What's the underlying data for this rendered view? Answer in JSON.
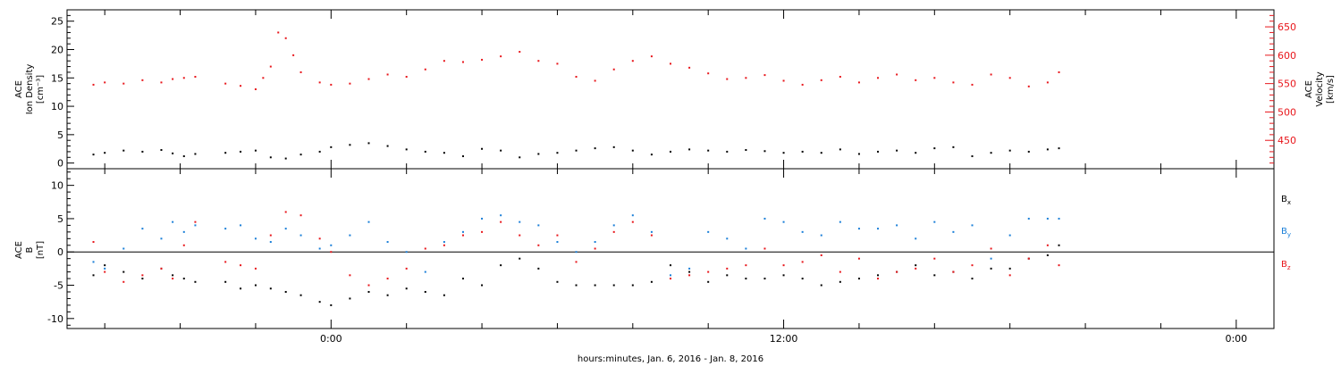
{
  "chart_data": [
    {
      "type": "scatter",
      "panel": "top",
      "ylabel_left": [
        "ACE",
        "Ion Density",
        "[cm⁻³]"
      ],
      "ylabel_right": [
        "ACE",
        "Velocity",
        "[km/s]"
      ],
      "ylim_left": [
        -1,
        27
      ],
      "ylim_right": [
        400,
        680
      ],
      "yticks_left": [
        "0",
        "5",
        "10",
        "15",
        "20",
        "25"
      ],
      "yticks_right": [
        "450",
        "500",
        "550",
        "600",
        "650"
      ],
      "series": [
        {
          "name": "",
          "axis": "left",
          "color": "#000000",
          "x_hours": [
            -6.3,
            -6.0,
            -5.5,
            -5.0,
            -4.5,
            -4.2,
            -3.9,
            -3.6,
            -2.8,
            -2.4,
            -2.0,
            -1.6,
            -1.2,
            -0.8,
            -0.3,
            0.0,
            0.5,
            1.0,
            1.5,
            2.0,
            2.5,
            3.0,
            3.5,
            4.0,
            4.5,
            5.0,
            5.5,
            6.0,
            6.5,
            7.0,
            7.5,
            8.0,
            8.5,
            9.0,
            9.5,
            10.0,
            10.5,
            11.0,
            11.5,
            12.0,
            12.5,
            13.0,
            13.5,
            14.0,
            14.5,
            15.0,
            15.5,
            16.0,
            16.5,
            17.0,
            17.5,
            18.0,
            18.5,
            19.0,
            19.3
          ],
          "values": [
            1.5,
            1.8,
            2.2,
            2.0,
            2.3,
            1.7,
            1.2,
            1.6,
            1.8,
            2.0,
            2.2,
            1.0,
            0.8,
            1.5,
            2.0,
            2.8,
            3.2,
            3.5,
            3.0,
            2.4,
            2.0,
            1.8,
            1.2,
            2.5,
            2.2,
            1.0,
            1.6,
            1.8,
            2.2,
            2.6,
            2.8,
            2.2,
            1.5,
            2.0,
            2.4,
            2.2,
            2.0,
            2.3,
            2.1,
            1.8,
            2.0,
            1.8,
            2.4,
            1.6,
            2.0,
            2.2,
            1.8,
            2.6,
            2.8,
            1.2,
            1.8,
            2.2,
            2.0,
            2.4,
            2.6
          ]
        },
        {
          "name": "",
          "axis": "right",
          "color": "#e8161b",
          "x_hours": [
            -6.3,
            -6.0,
            -5.5,
            -5.0,
            -4.5,
            -4.2,
            -3.9,
            -3.6,
            -2.8,
            -2.4,
            -2.0,
            -1.8,
            -1.6,
            -1.4,
            -1.2,
            -1.0,
            -0.8,
            -0.3,
            0.0,
            0.5,
            1.0,
            1.5,
            2.0,
            2.5,
            3.0,
            3.5,
            4.0,
            4.5,
            5.0,
            5.5,
            6.0,
            6.5,
            7.0,
            7.5,
            8.0,
            8.5,
            9.0,
            9.5,
            10.0,
            10.5,
            11.0,
            11.5,
            12.0,
            12.5,
            13.0,
            13.5,
            14.0,
            14.5,
            15.0,
            15.5,
            16.0,
            16.5,
            17.0,
            17.5,
            18.0,
            18.5,
            19.0,
            19.3
          ],
          "values": [
            548,
            552,
            550,
            556,
            552,
            558,
            560,
            562,
            550,
            546,
            540,
            560,
            580,
            640,
            630,
            600,
            570,
            552,
            548,
            550,
            558,
            566,
            562,
            575,
            590,
            588,
            592,
            598,
            606,
            590,
            585,
            562,
            555,
            575,
            590,
            598,
            585,
            578,
            568,
            558,
            560,
            565,
            555,
            548,
            556,
            562,
            552,
            560,
            566,
            556,
            560,
            552,
            548,
            566,
            560,
            545,
            552,
            570
          ]
        }
      ]
    },
    {
      "type": "scatter",
      "panel": "bottom",
      "ylabel_left": [
        "ACE",
        "B",
        "[nT]"
      ],
      "ylim": [
        -11.5,
        12.5
      ],
      "yticks": [
        "-10",
        "-5",
        "0",
        "5",
        "10"
      ],
      "zero_line": 0,
      "series": [
        {
          "name": "Bx",
          "color": "#000000",
          "x_hours": [
            -6.3,
            -6.0,
            -5.5,
            -5.0,
            -4.5,
            -4.2,
            -3.9,
            -3.6,
            -2.8,
            -2.4,
            -2.0,
            -1.6,
            -1.2,
            -0.8,
            -0.3,
            0.0,
            0.5,
            1.0,
            1.5,
            2.0,
            2.5,
            3.0,
            3.5,
            4.0,
            4.5,
            5.0,
            5.5,
            6.0,
            6.5,
            7.0,
            7.5,
            8.0,
            8.5,
            9.0,
            9.5,
            10.0,
            10.5,
            11.0,
            11.5,
            12.0,
            12.5,
            13.0,
            13.5,
            14.0,
            14.5,
            15.0,
            15.5,
            16.0,
            16.5,
            17.0,
            17.5,
            18.0,
            18.5,
            19.0,
            19.3
          ],
          "values": [
            -3.5,
            -2.0,
            -3.0,
            -4.0,
            -2.5,
            -3.5,
            -4.0,
            -4.5,
            -4.5,
            -5.5,
            -5.0,
            -5.5,
            -6.0,
            -6.5,
            -7.5,
            -8.0,
            -7.0,
            -6.0,
            -6.5,
            -5.5,
            -6.0,
            -6.5,
            -4.0,
            -5.0,
            -2.0,
            -1.0,
            -2.5,
            -4.5,
            -5.0,
            -5.0,
            -5.0,
            -5.0,
            -4.5,
            -2.0,
            -3.0,
            -4.5,
            -3.5,
            -4.0,
            -4.0,
            -3.5,
            -4.0,
            -5.0,
            -4.5,
            -4.0,
            -3.5,
            -3.0,
            -2.0,
            -3.5,
            -3.0,
            -4.0,
            -2.5,
            -2.5,
            -1.0,
            -0.5,
            1.0
          ]
        },
        {
          "name": "By",
          "color": "#1a7fd8",
          "x_hours": [
            -6.3,
            -6.0,
            -5.5,
            -5.0,
            -4.5,
            -4.2,
            -3.9,
            -3.6,
            -2.8,
            -2.4,
            -2.0,
            -1.6,
            -1.2,
            -0.8,
            -0.3,
            0.0,
            0.5,
            1.0,
            1.5,
            2.0,
            2.5,
            3.0,
            3.5,
            4.0,
            4.5,
            5.0,
            5.5,
            6.0,
            6.5,
            7.0,
            7.5,
            8.0,
            8.5,
            9.0,
            9.5,
            10.0,
            10.5,
            11.0,
            11.5,
            12.0,
            12.5,
            13.0,
            13.5,
            14.0,
            14.5,
            15.0,
            15.5,
            16.0,
            16.5,
            17.0,
            17.5,
            18.0,
            18.5,
            19.0,
            19.3
          ],
          "values": [
            -1.5,
            -2.5,
            0.5,
            3.5,
            2.0,
            4.5,
            3.0,
            4.0,
            3.5,
            4.0,
            2.0,
            1.5,
            3.5,
            2.5,
            0.5,
            1.0,
            2.5,
            4.5,
            1.5,
            0.0,
            -3.0,
            1.5,
            3.0,
            5.0,
            5.5,
            4.5,
            4.0,
            1.5,
            0.0,
            1.5,
            4.0,
            5.5,
            3.0,
            -3.5,
            -2.5,
            3.0,
            2.0,
            0.5,
            5.0,
            4.5,
            3.0,
            2.5,
            4.5,
            3.5,
            3.5,
            4.0,
            2.0,
            4.5,
            3.0,
            4.0,
            -1.0,
            2.5,
            5.0,
            5.0,
            5.0
          ]
        },
        {
          "name": "Bz",
          "color": "#e8161b",
          "x_hours": [
            -6.3,
            -6.0,
            -5.5,
            -5.0,
            -4.5,
            -4.2,
            -3.9,
            -3.6,
            -2.8,
            -2.4,
            -2.0,
            -1.6,
            -1.2,
            -0.8,
            -0.3,
            0.0,
            0.5,
            1.0,
            1.5,
            2.0,
            2.5,
            3.0,
            3.5,
            4.0,
            4.5,
            5.0,
            5.5,
            6.0,
            6.5,
            7.0,
            7.5,
            8.0,
            8.5,
            9.0,
            9.5,
            10.0,
            10.5,
            11.0,
            11.5,
            12.0,
            12.5,
            13.0,
            13.5,
            14.0,
            14.5,
            15.0,
            15.5,
            16.0,
            16.5,
            17.0,
            17.5,
            18.0,
            18.5,
            19.0,
            19.3
          ],
          "values": [
            1.5,
            -3.0,
            -4.5,
            -3.5,
            -2.5,
            -4.0,
            1.0,
            4.5,
            -1.5,
            -2.0,
            -2.5,
            2.5,
            6.0,
            5.5,
            2.0,
            0.0,
            -3.5,
            -5.0,
            -4.0,
            -2.5,
            0.5,
            1.0,
            2.5,
            3.0,
            4.5,
            2.5,
            1.0,
            2.5,
            -1.5,
            0.5,
            3.0,
            4.5,
            2.5,
            -4.0,
            -3.5,
            -3.0,
            -2.5,
            -2.0,
            0.5,
            -2.0,
            -1.5,
            -0.5,
            -3.0,
            -1.0,
            -4.0,
            -3.0,
            -2.5,
            -1.0,
            -3.0,
            -2.0,
            0.5,
            -3.5,
            -1.0,
            1.0,
            -2.0
          ]
        }
      ],
      "legend_placement": "right"
    }
  ],
  "x_axis": {
    "label": "hours:minutes, Jan.  6, 2016 - Jan.  8, 2016",
    "ticks": [
      {
        "hours": 0,
        "label": "0:00"
      },
      {
        "hours": 12,
        "label": "12:00"
      },
      {
        "hours": 24,
        "label": "0:00"
      }
    ],
    "range_hours": [
      -7,
      25
    ],
    "minor_tick_every_hours": 2
  },
  "legend": [
    {
      "key": "bx",
      "letter": "B",
      "sub": "x",
      "color": "#000000"
    },
    {
      "key": "by",
      "letter": "B",
      "sub": "y",
      "color": "#1a7fd8"
    },
    {
      "key": "bz",
      "letter": "B",
      "sub": "z",
      "color": "#e8161b"
    }
  ],
  "colors": {
    "axis": "#000000",
    "velocity_axis": "#e8161b",
    "bx": "#000000",
    "by": "#1a7fd8",
    "bz": "#e8161b"
  }
}
